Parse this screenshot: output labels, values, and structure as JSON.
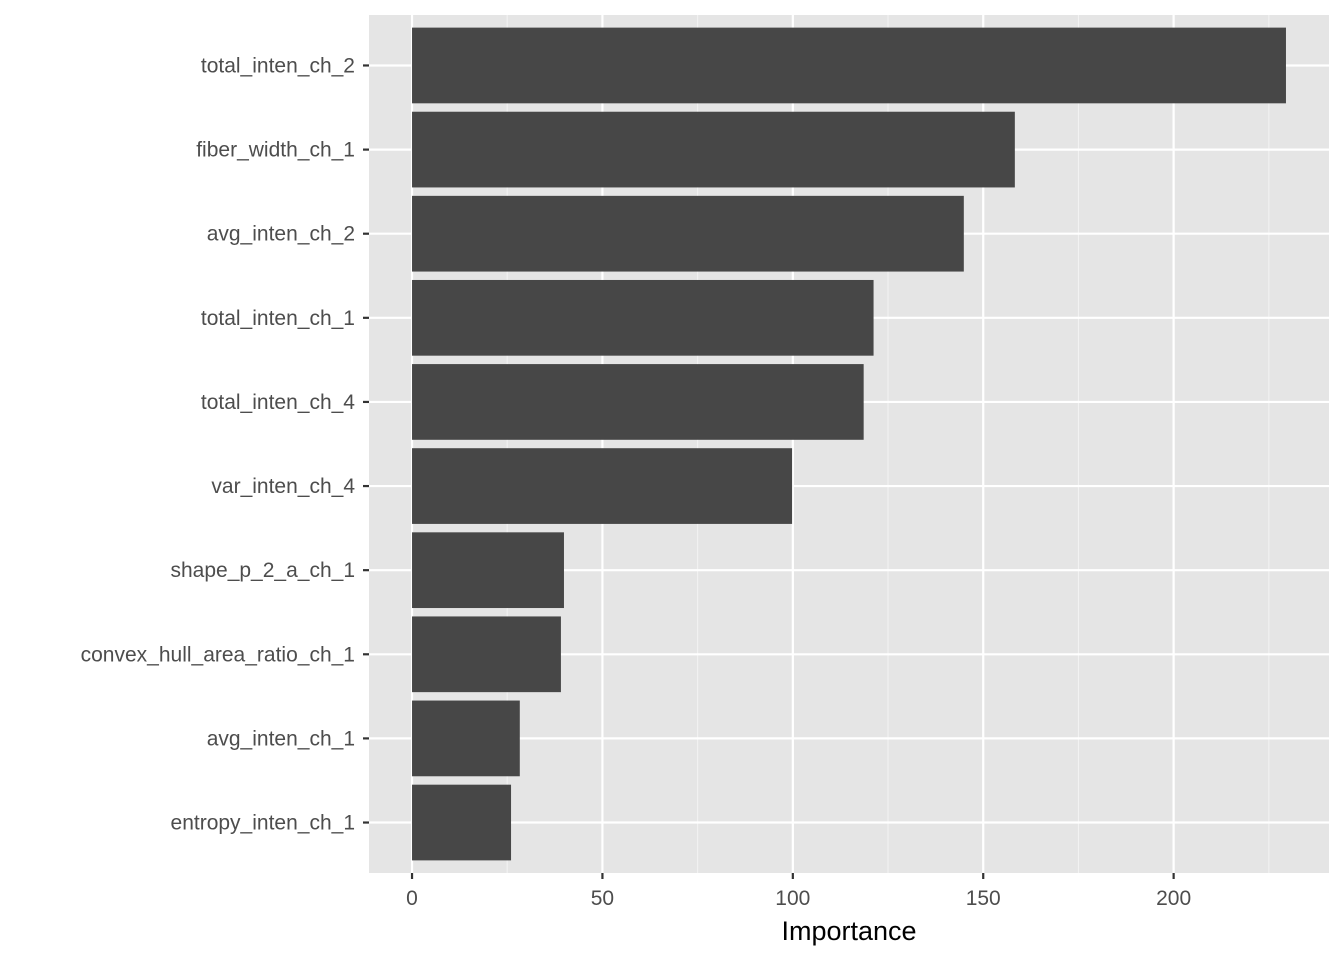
{
  "chart_data": {
    "type": "bar",
    "orientation": "horizontal",
    "categories": [
      "total_inten_ch_2",
      "fiber_width_ch_1",
      "avg_inten_ch_2",
      "total_inten_ch_1",
      "total_inten_ch_4",
      "var_inten_ch_4",
      "shape_p_2_a_ch_1",
      "convex_hull_area_ratio_ch_1",
      "avg_inten_ch_1",
      "entropy_inten_ch_1"
    ],
    "values": [
      229.5,
      158.3,
      144.9,
      121.2,
      118.6,
      99.8,
      39.9,
      39.1,
      28.3,
      26.0
    ],
    "xlabel": "Importance",
    "ylabel": "",
    "xlim": [
      -11.3,
      240.8
    ],
    "xticks": [
      0,
      50,
      100,
      150,
      200
    ],
    "grid": true,
    "legend": "none",
    "colors": {
      "bar": "#474747",
      "panel": "#e5e5e5",
      "grid_major": "#ffffff",
      "grid_minor": "#f2f2f2",
      "tick": "#333333"
    }
  }
}
